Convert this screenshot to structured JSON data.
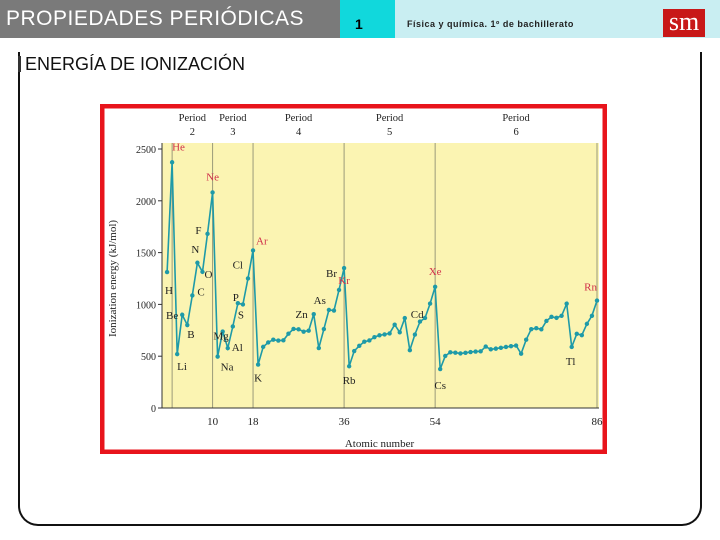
{
  "header": {
    "title": "PROPIEDADES PERIÓDICAS",
    "number": "1",
    "subtitle": "Física y química. 1º de bachillerato",
    "logo_text": "sm"
  },
  "section_title": "ENERGÍA DE IONIZACIÓN",
  "colors": {
    "header_gray": "#7a7a7a",
    "header_cyan": "#11d8dc",
    "header_light": "#c9eef2",
    "chart_border": "#e8141c",
    "plot_bg": "#fbf4b2",
    "series": "#1e9aa8",
    "label_red": "#d0304a",
    "label_dark": "#222222"
  },
  "chart_data": {
    "type": "line",
    "title": "",
    "xlabel": "Atomic number",
    "ylabel": "Ionization energy (kJ/mol)",
    "xlim": [
      0,
      86
    ],
    "ylim": [
      0,
      2500
    ],
    "yticks": [
      0,
      500,
      1000,
      1500,
      2000,
      2500
    ],
    "xticks": [
      10,
      18,
      36,
      54,
      86
    ],
    "period_lines": [
      2,
      10,
      18,
      36,
      54,
      86
    ],
    "periods": [
      {
        "label": "Period",
        "num": "2",
        "center": 6
      },
      {
        "label": "Period",
        "num": "3",
        "center": 14
      },
      {
        "label": "Period",
        "num": "4",
        "center": 27
      },
      {
        "label": "Period",
        "num": "5",
        "center": 45
      },
      {
        "label": "Period",
        "num": "6",
        "center": 70
      }
    ],
    "series": [
      {
        "values": [
          [
            1,
            1312
          ],
          [
            2,
            2372
          ],
          [
            3,
            520
          ],
          [
            4,
            900
          ],
          [
            5,
            801
          ],
          [
            6,
            1086
          ],
          [
            7,
            1402
          ],
          [
            8,
            1314
          ],
          [
            9,
            1681
          ],
          [
            10,
            2081
          ],
          [
            11,
            496
          ],
          [
            12,
            738
          ],
          [
            13,
            578
          ],
          [
            14,
            787
          ],
          [
            15,
            1012
          ],
          [
            16,
            1000
          ],
          [
            17,
            1251
          ],
          [
            18,
            1521
          ],
          [
            19,
            419
          ],
          [
            20,
            590
          ],
          [
            21,
            633
          ],
          [
            22,
            659
          ],
          [
            23,
            651
          ],
          [
            24,
            653
          ],
          [
            25,
            717
          ],
          [
            26,
            763
          ],
          [
            27,
            760
          ],
          [
            28,
            737
          ],
          [
            29,
            746
          ],
          [
            30,
            906
          ],
          [
            31,
            579
          ],
          [
            32,
            762
          ],
          [
            33,
            947
          ],
          [
            34,
            941
          ],
          [
            35,
            1140
          ],
          [
            36,
            1351
          ],
          [
            37,
            403
          ],
          [
            38,
            550
          ],
          [
            39,
            600
          ],
          [
            40,
            640
          ],
          [
            41,
            652
          ],
          [
            42,
            684
          ],
          [
            43,
            702
          ],
          [
            44,
            710
          ],
          [
            45,
            720
          ],
          [
            46,
            804
          ],
          [
            47,
            731
          ],
          [
            48,
            868
          ],
          [
            49,
            558
          ],
          [
            50,
            709
          ],
          [
            51,
            834
          ],
          [
            52,
            869
          ],
          [
            53,
            1008
          ],
          [
            54,
            1170
          ],
          [
            55,
            376
          ],
          [
            56,
            503
          ],
          [
            57,
            538
          ],
          [
            58,
            534
          ],
          [
            59,
            527
          ],
          [
            60,
            533
          ],
          [
            61,
            540
          ],
          [
            62,
            545
          ],
          [
            63,
            547
          ],
          [
            64,
            593
          ],
          [
            65,
            566
          ],
          [
            66,
            573
          ],
          [
            67,
            581
          ],
          [
            68,
            589
          ],
          [
            69,
            597
          ],
          [
            70,
            603
          ],
          [
            71,
            524
          ],
          [
            72,
            659
          ],
          [
            73,
            761
          ],
          [
            74,
            770
          ],
          [
            75,
            760
          ],
          [
            76,
            840
          ],
          [
            77,
            880
          ],
          [
            78,
            870
          ],
          [
            79,
            890
          ],
          [
            80,
            1007
          ],
          [
            81,
            589
          ],
          [
            82,
            716
          ],
          [
            83,
            703
          ],
          [
            84,
            812
          ],
          [
            85,
            890
          ],
          [
            86,
            1037
          ]
        ]
      }
    ],
    "element_labels": [
      {
        "sym": "He",
        "z": 2,
        "red": true
      },
      {
        "sym": "Ne",
        "z": 10,
        "red": true
      },
      {
        "sym": "Ar",
        "z": 18,
        "red": true
      },
      {
        "sym": "Kr",
        "z": 36,
        "red": true
      },
      {
        "sym": "Xe",
        "z": 54,
        "red": true
      },
      {
        "sym": "Rn",
        "z": 86,
        "red": true
      },
      {
        "sym": "Li",
        "z": 3,
        "red": false
      },
      {
        "sym": "Na",
        "z": 11,
        "red": false
      },
      {
        "sym": "K",
        "z": 19,
        "red": false
      },
      {
        "sym": "Rb",
        "z": 37,
        "red": false
      },
      {
        "sym": "Cs",
        "z": 55,
        "red": false
      },
      {
        "sym": "H",
        "z": 1,
        "red": false
      },
      {
        "sym": "Be",
        "z": 4,
        "red": false
      },
      {
        "sym": "B",
        "z": 5,
        "red": false
      },
      {
        "sym": "C",
        "z": 6,
        "red": false
      },
      {
        "sym": "N",
        "z": 7,
        "red": false
      },
      {
        "sym": "O",
        "z": 8,
        "red": false
      },
      {
        "sym": "F",
        "z": 9,
        "red": false
      },
      {
        "sym": "Mg",
        "z": 12,
        "red": false
      },
      {
        "sym": "Al",
        "z": 13,
        "red": false
      },
      {
        "sym": "P",
        "z": 15,
        "red": false
      },
      {
        "sym": "S",
        "z": 16,
        "red": false
      },
      {
        "sym": "Cl",
        "z": 17,
        "red": false
      },
      {
        "sym": "Zn",
        "z": 30,
        "red": false
      },
      {
        "sym": "As",
        "z": 33,
        "red": false
      },
      {
        "sym": "Br",
        "z": 35,
        "red": false
      },
      {
        "sym": "Cd",
        "z": 48,
        "red": false
      },
      {
        "sym": "Tl",
        "z": 81,
        "red": false
      }
    ]
  }
}
